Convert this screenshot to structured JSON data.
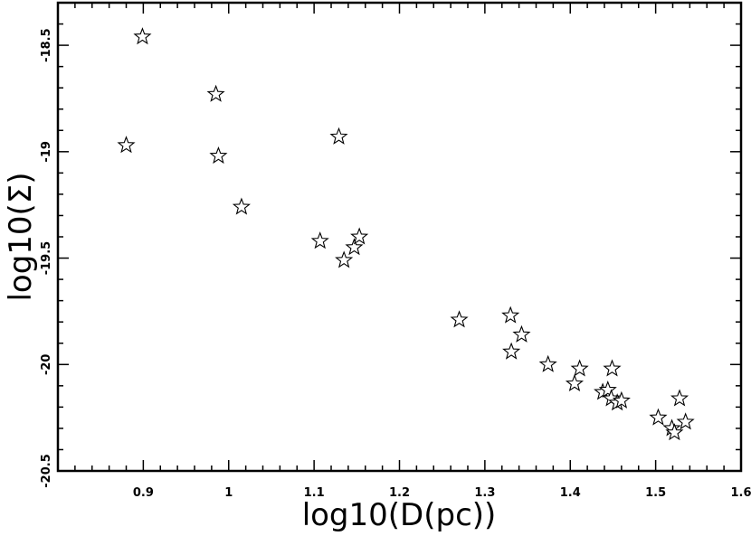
{
  "chart_data": {
    "type": "scatter",
    "title": "",
    "xlabel": "log10(D(pc))",
    "ylabel": "log10(Σ)",
    "xlim": [
      0.8,
      1.6
    ],
    "ylim": [
      -20.5,
      -18.3
    ],
    "x_ticks": [
      0.9,
      1.0,
      1.1,
      1.2,
      1.3,
      1.4,
      1.5,
      1.6
    ],
    "x_tick_labels": [
      "0.9",
      "1",
      "1.1",
      "1.2",
      "1.3",
      "1.4",
      "1.5",
      "1.6"
    ],
    "y_ticks": [
      -20.5,
      -20.0,
      -19.5,
      -19.0,
      -18.5
    ],
    "y_tick_labels": [
      "-20.5",
      "-20",
      "-19.5",
      "-19",
      "-18.5"
    ],
    "grid": false,
    "marker": "star",
    "series": [
      {
        "points": [
          {
            "x": 0.88,
            "y": -18.97
          },
          {
            "x": 0.899,
            "y": -18.46
          },
          {
            "x": 0.985,
            "y": -18.73
          },
          {
            "x": 0.988,
            "y": -19.02
          },
          {
            "x": 1.015,
            "y": -19.26
          },
          {
            "x": 1.107,
            "y": -19.42
          },
          {
            "x": 1.129,
            "y": -18.93
          },
          {
            "x": 1.135,
            "y": -19.51
          },
          {
            "x": 1.147,
            "y": -19.45
          },
          {
            "x": 1.153,
            "y": -19.4
          },
          {
            "x": 1.27,
            "y": -19.79
          },
          {
            "x": 1.33,
            "y": -19.77
          },
          {
            "x": 1.331,
            "y": -19.94
          },
          {
            "x": 1.343,
            "y": -19.86
          },
          {
            "x": 1.374,
            "y": -20.0
          },
          {
            "x": 1.405,
            "y": -20.09
          },
          {
            "x": 1.411,
            "y": -20.02
          },
          {
            "x": 1.438,
            "y": -20.13
          },
          {
            "x": 1.444,
            "y": -20.12
          },
          {
            "x": 1.448,
            "y": -20.16
          },
          {
            "x": 1.449,
            "y": -20.02
          },
          {
            "x": 1.455,
            "y": -20.18
          },
          {
            "x": 1.46,
            "y": -20.17
          },
          {
            "x": 1.503,
            "y": -20.25
          },
          {
            "x": 1.519,
            "y": -20.3
          },
          {
            "x": 1.522,
            "y": -20.32
          },
          {
            "x": 1.528,
            "y": -20.16
          },
          {
            "x": 1.535,
            "y": -20.27
          }
        ]
      }
    ]
  }
}
